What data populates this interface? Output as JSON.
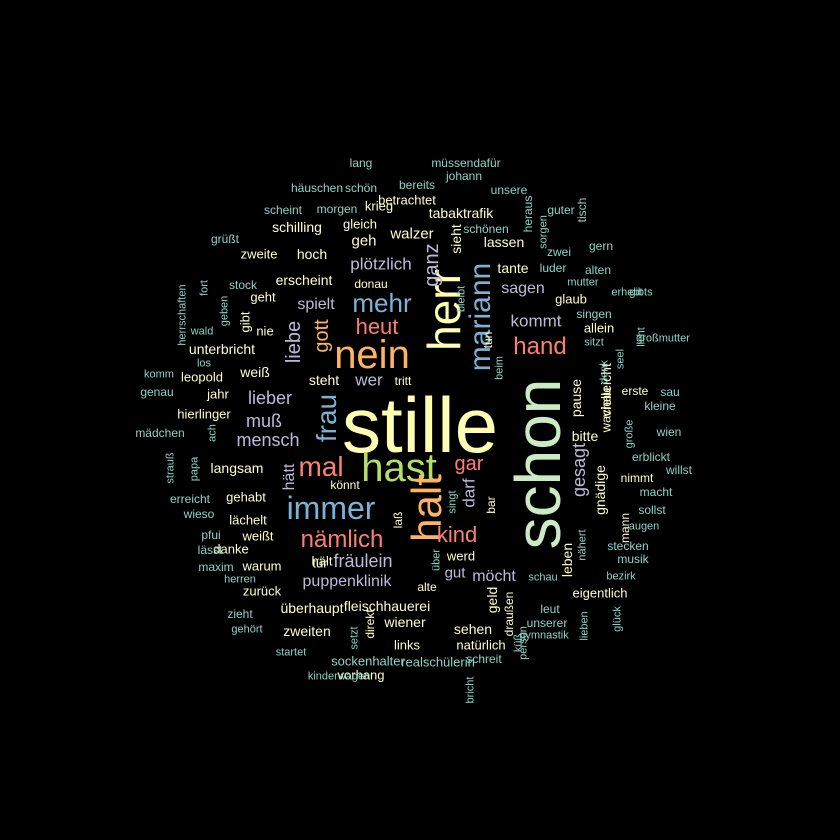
{
  "palette": {
    "yellow": "#FFFFB3",
    "light_yellow": "#FFFFCC",
    "lavender": "#BEBADA",
    "salmon": "#FB8072",
    "blue": "#80B1D3",
    "green": "#B3DE69",
    "orange": "#FDB462",
    "mint": "#CCEBC5",
    "teal": "#8DD3C7",
    "pink": "#FCCDE5",
    "grey": "#D9D9D9",
    "purple": "#BC80BD"
  },
  "words": [
    {
      "text": "stille",
      "color": "yellow"
    },
    {
      "text": "schon",
      "color": "mint"
    },
    {
      "text": "hast",
      "color": "green"
    },
    {
      "text": "herr",
      "color": "yellow"
    },
    {
      "text": "nein",
      "color": "orange"
    },
    {
      "text": "halt",
      "color": "orange"
    },
    {
      "text": "immer",
      "color": "blue"
    },
    {
      "text": "mal",
      "color": "salmon"
    },
    {
      "text": "mehr",
      "color": "blue"
    },
    {
      "text": "frau",
      "color": "blue"
    },
    {
      "text": "nämlich",
      "color": "salmon"
    },
    {
      "text": "mariann",
      "color": "blue"
    },
    {
      "text": "hand",
      "color": "salmon"
    },
    {
      "text": "kind",
      "color": "salmon"
    },
    {
      "text": "heut",
      "color": "salmon"
    },
    {
      "text": "gott",
      "color": "orange"
    },
    {
      "text": "ganz",
      "color": "lavender"
    },
    {
      "text": "gar",
      "color": "salmon"
    },
    {
      "text": "liebe",
      "color": "lavender"
    },
    {
      "text": "fräulein",
      "color": "lavender"
    },
    {
      "text": "lieber",
      "color": "lavender"
    },
    {
      "text": "mensch",
      "color": "lavender"
    },
    {
      "text": "muß",
      "color": "lavender"
    },
    {
      "text": "gesagt",
      "color": "lavender"
    },
    {
      "text": "darf",
      "color": "lavender"
    },
    {
      "text": "kommt",
      "color": "lavender"
    },
    {
      "text": "wer",
      "color": "lavender"
    },
    {
      "text": "plötzlich",
      "color": "lavender"
    },
    {
      "text": "spielt",
      "color": "lavender"
    },
    {
      "text": "puppenklinik",
      "color": "lavender"
    },
    {
      "text": "möcht",
      "color": "lavender"
    },
    {
      "text": "sagen",
      "color": "lavender"
    },
    {
      "text": "hätt",
      "color": "lavender"
    },
    {
      "text": "gut",
      "color": "lavender"
    },
    {
      "text": "sieht",
      "color": "light_yellow"
    },
    {
      "text": "geh",
      "color": "light_yellow"
    },
    {
      "text": "walzer",
      "color": "light_yellow"
    },
    {
      "text": "lassen",
      "color": "light_yellow"
    },
    {
      "text": "tante",
      "color": "light_yellow"
    },
    {
      "text": "bitte",
      "color": "light_yellow"
    },
    {
      "text": "pause",
      "color": "light_yellow"
    },
    {
      "text": "vielleicht",
      "color": "light_yellow"
    },
    {
      "text": "gnädige",
      "color": "light_yellow"
    },
    {
      "text": "langsam",
      "color": "light_yellow"
    },
    {
      "text": "erscheint",
      "color": "light_yellow"
    },
    {
      "text": "hoch",
      "color": "light_yellow"
    },
    {
      "text": "unterbricht",
      "color": "light_yellow"
    },
    {
      "text": "steht",
      "color": "light_yellow"
    },
    {
      "text": "weiß",
      "color": "light_yellow"
    },
    {
      "text": "fleischhauerei",
      "color": "light_yellow"
    },
    {
      "text": "überhaupt",
      "color": "light_yellow"
    },
    {
      "text": "wiener",
      "color": "light_yellow"
    },
    {
      "text": "zweiten",
      "color": "light_yellow"
    },
    {
      "text": "sehen",
      "color": "light_yellow"
    },
    {
      "text": "geld",
      "color": "light_yellow"
    },
    {
      "text": "leben",
      "color": "light_yellow"
    },
    {
      "text": "werd",
      "color": "light_yellow"
    },
    {
      "text": "allein",
      "color": "light_yellow"
    },
    {
      "text": "wachau",
      "color": "light_yellow"
    },
    {
      "text": "glaub",
      "color": "light_yellow"
    },
    {
      "text": "tabaktrafik",
      "color": "light_yellow"
    },
    {
      "text": "schilling",
      "color": "light_yellow"
    },
    {
      "text": "krieg",
      "color": "light_yellow"
    },
    {
      "text": "gleich",
      "color": "light_yellow"
    },
    {
      "text": "betrachtet",
      "color": "light_yellow"
    },
    {
      "text": "zweite",
      "color": "light_yellow"
    },
    {
      "text": "geht",
      "color": "light_yellow"
    },
    {
      "text": "gibt",
      "color": "light_yellow"
    },
    {
      "text": "nie",
      "color": "light_yellow"
    },
    {
      "text": "jahr",
      "color": "light_yellow"
    },
    {
      "text": "leopold",
      "color": "light_yellow"
    },
    {
      "text": "hierlinger",
      "color": "light_yellow"
    },
    {
      "text": "gehabt",
      "color": "light_yellow"
    },
    {
      "text": "lächelt",
      "color": "light_yellow"
    },
    {
      "text": "weißt",
      "color": "light_yellow"
    },
    {
      "text": "danke",
      "color": "light_yellow"
    },
    {
      "text": "warum",
      "color": "light_yellow"
    },
    {
      "text": "zurück",
      "color": "light_yellow"
    },
    {
      "text": "hält",
      "color": "light_yellow"
    },
    {
      "text": "tür",
      "color": "light_yellow"
    },
    {
      "text": "könnt",
      "color": "light_yellow"
    },
    {
      "text": "laß",
      "color": "light_yellow"
    },
    {
      "text": "bar",
      "color": "light_yellow"
    },
    {
      "text": "alte",
      "color": "light_yellow"
    },
    {
      "text": "donau",
      "color": "light_yellow"
    },
    {
      "text": "tritt",
      "color": "light_yellow"
    },
    {
      "text": "tun",
      "color": "light_yellow"
    },
    {
      "text": "erste",
      "color": "light_yellow"
    },
    {
      "text": "nimmt",
      "color": "light_yellow"
    },
    {
      "text": "mann",
      "color": "light_yellow"
    },
    {
      "text": "eigentlich",
      "color": "light_yellow"
    },
    {
      "text": "draußen",
      "color": "light_yellow"
    },
    {
      "text": "direkt",
      "color": "light_yellow"
    },
    {
      "text": "links",
      "color": "light_yellow"
    },
    {
      "text": "natürlich",
      "color": "light_yellow"
    },
    {
      "text": "vorhang",
      "color": "light_yellow"
    },
    {
      "text": "sockenhalter",
      "color": "teal"
    },
    {
      "text": "realschülerin",
      "color": "teal"
    },
    {
      "text": "schreit",
      "color": "teal"
    },
    {
      "text": "lang",
      "color": "teal"
    },
    {
      "text": "müssendafür",
      "color": "teal"
    },
    {
      "text": "häuschen",
      "color": "teal"
    },
    {
      "text": "schön",
      "color": "teal"
    },
    {
      "text": "bereits",
      "color": "teal"
    },
    {
      "text": "johann",
      "color": "teal"
    },
    {
      "text": "unsere",
      "color": "teal"
    },
    {
      "text": "scheint",
      "color": "teal"
    },
    {
      "text": "morgen",
      "color": "teal"
    },
    {
      "text": "grüßt",
      "color": "teal"
    },
    {
      "text": "schönen",
      "color": "teal"
    },
    {
      "text": "heraus",
      "color": "teal"
    },
    {
      "text": "guter",
      "color": "teal"
    },
    {
      "text": "tisch",
      "color": "teal"
    },
    {
      "text": "sorgen",
      "color": "teal"
    },
    {
      "text": "zwei",
      "color": "teal"
    },
    {
      "text": "gern",
      "color": "teal"
    },
    {
      "text": "bleibt",
      "color": "teal"
    },
    {
      "text": "luder",
      "color": "teal"
    },
    {
      "text": "alten",
      "color": "teal"
    },
    {
      "text": "mutter",
      "color": "teal"
    },
    {
      "text": "stock",
      "color": "teal"
    },
    {
      "text": "fort",
      "color": "teal"
    },
    {
      "text": "geben",
      "color": "teal"
    },
    {
      "text": "herrschaften",
      "color": "teal"
    },
    {
      "text": "wald",
      "color": "teal"
    },
    {
      "text": "los",
      "color": "teal"
    },
    {
      "text": "komm",
      "color": "teal"
    },
    {
      "text": "genau",
      "color": "teal"
    },
    {
      "text": "singen",
      "color": "teal"
    },
    {
      "text": "erhebt",
      "color": "teal"
    },
    {
      "text": "gibts",
      "color": "teal"
    },
    {
      "text": "sitzt",
      "color": "teal"
    },
    {
      "text": "denk",
      "color": "teal"
    },
    {
      "text": "licht",
      "color": "teal"
    },
    {
      "text": "großmutter",
      "color": "teal"
    },
    {
      "text": "seel",
      "color": "teal"
    },
    {
      "text": "sau",
      "color": "teal"
    },
    {
      "text": "kleine",
      "color": "teal"
    },
    {
      "text": "beim",
      "color": "teal"
    },
    {
      "text": "mädchen",
      "color": "teal"
    },
    {
      "text": "ach",
      "color": "teal"
    },
    {
      "text": "strauß",
      "color": "teal"
    },
    {
      "text": "papa",
      "color": "teal"
    },
    {
      "text": "große",
      "color": "teal"
    },
    {
      "text": "wien",
      "color": "teal"
    },
    {
      "text": "erblickt",
      "color": "teal"
    },
    {
      "text": "willst",
      "color": "teal"
    },
    {
      "text": "erreicht",
      "color": "teal"
    },
    {
      "text": "wieso",
      "color": "teal"
    },
    {
      "text": "macht",
      "color": "teal"
    },
    {
      "text": "sollst",
      "color": "teal"
    },
    {
      "text": "augen",
      "color": "teal"
    },
    {
      "text": "singt",
      "color": "teal"
    },
    {
      "text": "pfui",
      "color": "teal"
    },
    {
      "text": "lässt",
      "color": "teal"
    },
    {
      "text": "stecken",
      "color": "teal"
    },
    {
      "text": "musik",
      "color": "teal"
    },
    {
      "text": "nähert",
      "color": "teal"
    },
    {
      "text": "maxim",
      "color": "teal"
    },
    {
      "text": "herren",
      "color": "teal"
    },
    {
      "text": "schau",
      "color": "teal"
    },
    {
      "text": "bezirk",
      "color": "teal"
    },
    {
      "text": "über",
      "color": "teal"
    },
    {
      "text": "zieht",
      "color": "teal"
    },
    {
      "text": "leut",
      "color": "teal"
    },
    {
      "text": "unserer",
      "color": "teal"
    },
    {
      "text": "lieben",
      "color": "teal"
    },
    {
      "text": "gehört",
      "color": "teal"
    },
    {
      "text": "setzt",
      "color": "teal"
    },
    {
      "text": "gymnastik",
      "color": "teal"
    },
    {
      "text": "küß",
      "color": "teal"
    },
    {
      "text": "glück",
      "color": "teal"
    },
    {
      "text": "startet",
      "color": "teal"
    },
    {
      "text": "kinderwagen",
      "color": "teal"
    },
    {
      "text": "bricht",
      "color": "teal"
    },
    {
      "text": "person",
      "color": "teal"
    },
    {
      "text": "himmel",
      "color": "teal"
    },
    {
      "text": "ere",
      "color": "teal"
    }
  ]
}
